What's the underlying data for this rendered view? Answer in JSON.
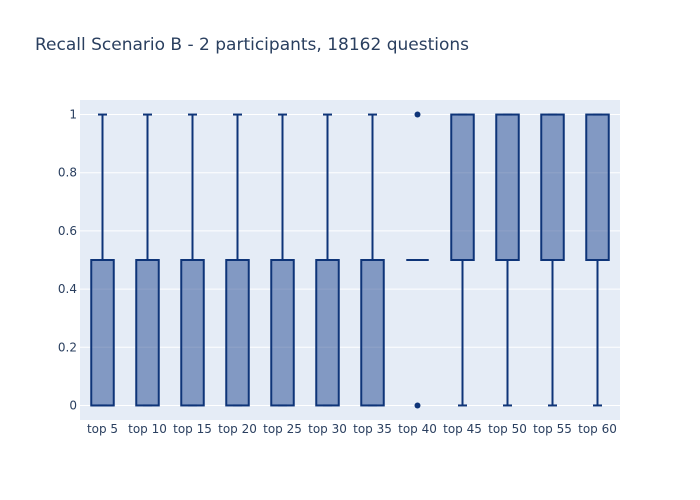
{
  "chart_data": {
    "type": "box",
    "title": "Recall Scenario B - 2 participants, 18162 questions",
    "xlabel": "",
    "ylabel": "",
    "ylim": [
      -0.05,
      1.05
    ],
    "yticks": [
      0,
      0.2,
      0.4,
      0.6,
      0.8,
      1
    ],
    "ytick_labels": [
      "0",
      "0.2",
      "0.4",
      "0.6",
      "0.8",
      "1"
    ],
    "grid": true,
    "legend": "none",
    "categories": [
      "top 5",
      "top 10",
      "top 15",
      "top 20",
      "top 25",
      "top 30",
      "top 35",
      "top 40",
      "top 45",
      "top 50",
      "top 55",
      "top 60"
    ],
    "boxes": [
      {
        "category": "top 5",
        "min": 0,
        "q1": 0,
        "median": 0.0,
        "q3": 0.5,
        "max": 1,
        "outliers": []
      },
      {
        "category": "top 10",
        "min": 0,
        "q1": 0,
        "median": 0.5,
        "q3": 0.5,
        "max": 1,
        "outliers": []
      },
      {
        "category": "top 15",
        "min": 0,
        "q1": 0,
        "median": 0.5,
        "q3": 0.5,
        "max": 1,
        "outliers": []
      },
      {
        "category": "top 20",
        "min": 0,
        "q1": 0,
        "median": 0.5,
        "q3": 0.5,
        "max": 1,
        "outliers": []
      },
      {
        "category": "top 25",
        "min": 0,
        "q1": 0,
        "median": 0.5,
        "q3": 0.5,
        "max": 1,
        "outliers": []
      },
      {
        "category": "top 30",
        "min": 0,
        "q1": 0,
        "median": 0.5,
        "q3": 0.5,
        "max": 1,
        "outliers": []
      },
      {
        "category": "top 35",
        "min": 0,
        "q1": 0,
        "median": 0.5,
        "q3": 0.5,
        "max": 1,
        "outliers": []
      },
      {
        "category": "top 40",
        "min": 0.5,
        "q1": 0.5,
        "median": 0.5,
        "q3": 0.5,
        "max": 0.5,
        "outliers": [
          0,
          1
        ]
      },
      {
        "category": "top 45",
        "min": 0,
        "q1": 0.5,
        "median": 0.5,
        "q3": 1,
        "max": 1,
        "outliers": []
      },
      {
        "category": "top 50",
        "min": 0,
        "q1": 0.5,
        "median": 0.5,
        "q3": 1,
        "max": 1,
        "outliers": []
      },
      {
        "category": "top 55",
        "min": 0,
        "q1": 0.5,
        "median": 0.5,
        "q3": 1,
        "max": 1,
        "outliers": []
      },
      {
        "category": "top 60",
        "min": 0,
        "q1": 0.5,
        "median": 0.5,
        "q3": 1,
        "max": 1,
        "outliers": []
      }
    ],
    "colors": {
      "background": "#ffffff",
      "plot_background": "#e5ecf6",
      "grid": "#ffffff",
      "box_fill": "rgba(31,70,144,0.5)",
      "box_line": "#0e3478",
      "text": "#2a3f5f"
    }
  }
}
